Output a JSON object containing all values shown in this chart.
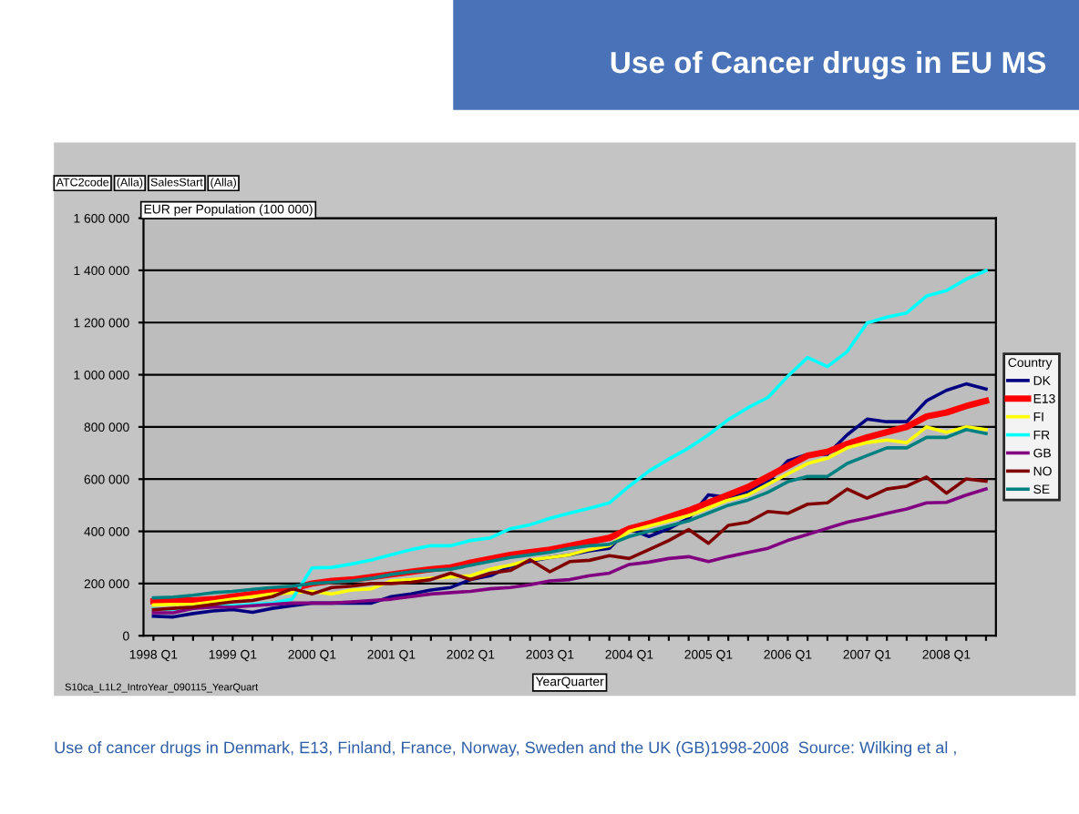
{
  "chart_data": {
    "type": "line",
    "title": "Use of Cancer drugs in EU MS",
    "ylabel": "EUR per Population (100 000)",
    "xlabel": "YearQuarter",
    "legend_title": "Country",
    "annotations": [
      "ATC2code",
      "(Alla)",
      "SalesStart",
      "(Alla)",
      "S10ca_L1L2_IntroYear_090115_YearQuart",
      "Use of cancer drugs in Denmark, E13, Finland, France, Norway, Sweden and the UK (GB)1998-2008  Source: Wilking et al ,"
    ],
    "categories": [
      "1998 Q1",
      null,
      null,
      null,
      "1999 Q1",
      null,
      null,
      null,
      "2000 Q1",
      null,
      null,
      null,
      "2001 Q1",
      null,
      null,
      null,
      "2002 Q1",
      null,
      null,
      null,
      "2003 Q1",
      null,
      null,
      null,
      "2004 Q1",
      null,
      null,
      null,
      "2005 Q1",
      null,
      null,
      null,
      "2006 Q1",
      null,
      null,
      null,
      "2007 Q1",
      null,
      null,
      null,
      "2008 Q1",
      null,
      null
    ],
    "ylim": [
      0,
      1600000
    ],
    "yticks": [
      {
        "value": 0,
        "label": "0"
      },
      {
        "value": 200000,
        "label": "200 000"
      },
      {
        "value": 400000,
        "label": "400 000"
      },
      {
        "value": 600000,
        "label": "600 000"
      },
      {
        "value": 800000,
        "label": "800 000"
      },
      {
        "value": 1000000,
        "label": "1 000 000"
      },
      {
        "value": 1200000,
        "label": "1 200 000"
      },
      {
        "value": 1400000,
        "label": "1 400 000"
      },
      {
        "value": 1600000,
        "label": "1 600 000"
      }
    ],
    "grid": "y",
    "legend": "right",
    "marker": "none",
    "line_style": "solid",
    "series": [
      {
        "name": "DK",
        "color": "#000080",
        "values": [
          75000,
          72000,
          85000,
          95000,
          100000,
          90000,
          105000,
          115000,
          125000,
          125000,
          125000,
          125000,
          150000,
          160000,
          175000,
          185000,
          215000,
          230000,
          265000,
          285000,
          300000,
          310000,
          325000,
          335000,
          410000,
          380000,
          410000,
          450000,
          540000,
          530000,
          550000,
          590000,
          670000,
          695000,
          695000,
          770000,
          830000,
          820000,
          820000,
          900000,
          940000,
          965000,
          945000
        ]
      },
      {
        "name": "E13",
        "color": "#ff0000",
        "values": [
          132000,
          135000,
          135000,
          140000,
          150000,
          160000,
          170000,
          180000,
          200000,
          210000,
          215000,
          225000,
          235000,
          245000,
          255000,
          262000,
          280000,
          295000,
          310000,
          320000,
          330000,
          345000,
          360000,
          375000,
          410000,
          430000,
          455000,
          480000,
          510000,
          540000,
          570000,
          610000,
          650000,
          690000,
          705000,
          735000,
          760000,
          780000,
          800000,
          840000,
          855000,
          880000,
          900000
        ]
      },
      {
        "name": "FI",
        "color": "#ffff00",
        "values": [
          118000,
          120000,
          120000,
          130000,
          140000,
          150000,
          160000,
          165000,
          170000,
          160000,
          175000,
          180000,
          210000,
          215000,
          220000,
          225000,
          230000,
          255000,
          270000,
          290000,
          300000,
          310000,
          330000,
          345000,
          400000,
          420000,
          440000,
          460000,
          490000,
          520000,
          540000,
          580000,
          620000,
          660000,
          680000,
          720000,
          740000,
          750000,
          740000,
          800000,
          780000,
          800000,
          790000
        ]
      },
      {
        "name": "FR",
        "color": "#00ffff",
        "values": [
          102000,
          102000,
          110000,
          115000,
          115000,
          120000,
          125000,
          140000,
          260000,
          262000,
          275000,
          290000,
          310000,
          330000,
          345000,
          345000,
          365000,
          375000,
          410000,
          425000,
          450000,
          470000,
          488000,
          509000,
          573000,
          631000,
          677000,
          719000,
          770000,
          828000,
          874000,
          913000,
          994000,
          1066000,
          1031000,
          1089000,
          1198000,
          1221000,
          1237000,
          1302000,
          1322000,
          1366000,
          1399000
        ]
      },
      {
        "name": "GB",
        "color": "#800080",
        "values": [
          88000,
          88000,
          105000,
          110000,
          110000,
          115000,
          120000,
          125000,
          125000,
          125000,
          130000,
          135000,
          140000,
          150000,
          160000,
          165000,
          170000,
          180000,
          185000,
          195000,
          210000,
          215000,
          230000,
          240000,
          273000,
          282000,
          296000,
          303000,
          284000,
          303000,
          319000,
          335000,
          365000,
          388000,
          412000,
          435000,
          451000,
          469000,
          486000,
          509000,
          511000,
          539000,
          562000
        ]
      },
      {
        "name": "NO",
        "color": "#800000",
        "values": [
          100000,
          105000,
          110000,
          120000,
          130000,
          135000,
          150000,
          180000,
          160000,
          185000,
          190000,
          200000,
          200000,
          205000,
          215000,
          240000,
          215000,
          240000,
          250000,
          291000,
          245000,
          284000,
          289000,
          307000,
          296000,
          330000,
          365000,
          407000,
          354000,
          423000,
          435000,
          476000,
          469000,
          504000,
          509000,
          562000,
          527000,
          562000,
          573000,
          608000,
          546000,
          601000,
          592000
        ]
      },
      {
        "name": "SE",
        "color": "#008080",
        "values": [
          145000,
          148000,
          155000,
          165000,
          170000,
          178000,
          185000,
          190000,
          200000,
          205000,
          210000,
          220000,
          235000,
          245000,
          250000,
          255000,
          270000,
          285000,
          300000,
          310000,
          320000,
          335000,
          345000,
          350000,
          380000,
          400000,
          420000,
          440000,
          470000,
          500000,
          520000,
          550000,
          590000,
          610000,
          610000,
          660000,
          690000,
          720000,
          720000,
          760000,
          760000,
          790000,
          775000
        ]
      }
    ]
  }
}
